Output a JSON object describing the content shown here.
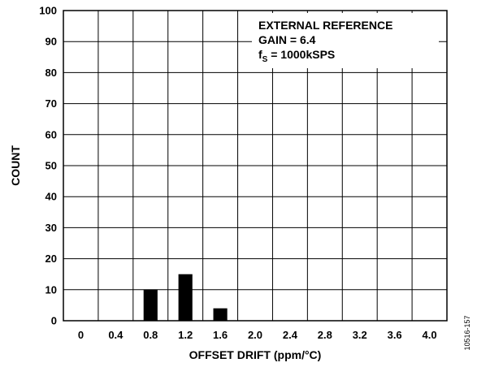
{
  "chart_data": {
    "type": "bar",
    "title": "",
    "xlabel": "OFFSET DRIFT (ppm/°C)",
    "ylabel": "COUNT",
    "ylim": [
      0,
      100
    ],
    "yticks": [
      "0",
      "10",
      "20",
      "30",
      "40",
      "50",
      "60",
      "70",
      "80",
      "90",
      "100"
    ],
    "categories": [
      "0",
      "0.4",
      "0.8",
      "1.2",
      "1.6",
      "2.0",
      "2.4",
      "2.8",
      "3.2",
      "3.6",
      "4.0"
    ],
    "values": [
      0,
      0,
      10,
      15,
      4,
      0,
      0,
      0,
      0,
      0,
      0
    ],
    "bar_color": "#000000",
    "grid": true,
    "annotation": {
      "line1": "EXTERNAL REFERENCE",
      "line2": "GAIN = 6.4",
      "line3_main": "f",
      "line3_sub": "S",
      "line3_rest": " = 1000kSPS"
    },
    "figure_id": "10516-157"
  }
}
